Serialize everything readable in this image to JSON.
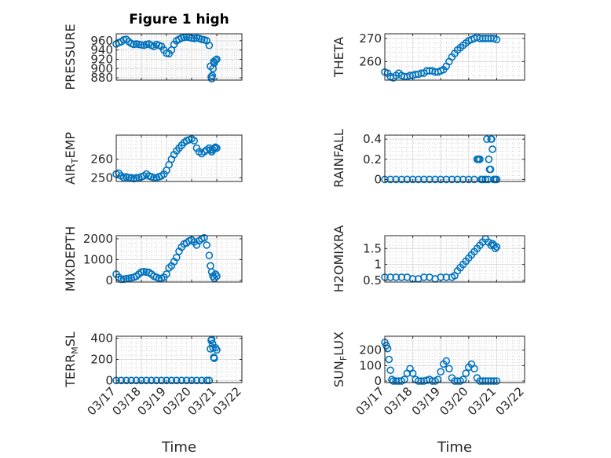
{
  "figure": {
    "title": "Figure 1 high",
    "marker_color": "#0072BD",
    "grid": "major+minor",
    "marker": "circle"
  },
  "chart_data": [
    {
      "type": "scatter",
      "ylabel": "PRESSURE",
      "title": "Figure 1 high",
      "xlim": [
        "03/17",
        "03/22"
      ],
      "ylim": [
        875,
        975
      ],
      "yticks": [
        880,
        900,
        920,
        940,
        960
      ],
      "xticks": [
        "03/17",
        "03/18",
        "03/19",
        "03/20",
        "03/21",
        "03/22"
      ],
      "show_xticks": false,
      "x": [
        0.0,
        0.1,
        0.2,
        0.3,
        0.4,
        0.5,
        0.6,
        0.7,
        0.8,
        0.9,
        1.0,
        1.1,
        1.2,
        1.3,
        1.4,
        1.5,
        1.6,
        1.7,
        1.8,
        1.9,
        2.0,
        2.1,
        2.2,
        2.3,
        2.4,
        2.5,
        2.6,
        2.7,
        2.8,
        2.9,
        3.0,
        3.1,
        3.2,
        3.3,
        3.4,
        3.5,
        3.6,
        3.7,
        3.75,
        3.78,
        3.8,
        3.82,
        3.85,
        3.88,
        3.9,
        3.95,
        4.0
      ],
      "y": [
        953,
        956,
        958,
        962,
        963,
        958,
        954,
        952,
        953,
        952,
        951,
        950,
        952,
        953,
        950,
        948,
        952,
        950,
        948,
        940,
        933,
        932,
        940,
        952,
        960,
        963,
        966,
        967,
        968,
        967,
        966,
        965,
        966,
        965,
        963,
        962,
        960,
        950,
        905,
        882,
        878,
        885,
        900,
        915,
        912,
        918,
        920
      ]
    },
    {
      "type": "scatter",
      "ylabel": "THETA",
      "xlim": [
        "03/17",
        "03/22"
      ],
      "ylim": [
        252,
        272
      ],
      "yticks": [
        260,
        270
      ],
      "xticks": [
        "03/17",
        "03/18",
        "03/19",
        "03/20",
        "03/21",
        "03/22"
      ],
      "show_xticks": false,
      "x": [
        0.0,
        0.1,
        0.2,
        0.3,
        0.4,
        0.5,
        0.6,
        0.7,
        0.8,
        0.9,
        1.0,
        1.1,
        1.2,
        1.3,
        1.4,
        1.5,
        1.6,
        1.7,
        1.8,
        1.9,
        2.0,
        2.1,
        2.2,
        2.3,
        2.4,
        2.5,
        2.6,
        2.7,
        2.8,
        2.9,
        3.0,
        3.1,
        3.2,
        3.3,
        3.4,
        3.5,
        3.6,
        3.7,
        3.8,
        3.9,
        4.0
      ],
      "y": [
        255.5,
        255,
        253.5,
        253,
        254,
        255,
        254,
        253.5,
        253.5,
        254,
        254,
        254.5,
        254.5,
        255,
        255,
        256,
        256,
        256,
        255.5,
        255.5,
        256,
        256.5,
        258,
        260,
        262,
        263.5,
        265,
        266,
        267,
        268,
        269,
        269.5,
        270,
        270.5,
        270,
        270,
        270,
        270,
        270,
        270,
        269.5
      ]
    },
    {
      "type": "scatter",
      "ylabel": "AIR_TEMP",
      "ylabel_main": "AIR",
      "ylabel_sub": "T",
      "ylabel_rest": "EMP",
      "xlim": [
        "03/17",
        "03/22"
      ],
      "ylim": [
        248,
        273
      ],
      "yticks": [
        250,
        260
      ],
      "xticks": [
        "03/17",
        "03/18",
        "03/19",
        "03/20",
        "03/21",
        "03/22"
      ],
      "show_xticks": false,
      "x": [
        0.0,
        0.1,
        0.2,
        0.3,
        0.4,
        0.5,
        0.6,
        0.7,
        0.8,
        0.9,
        1.0,
        1.1,
        1.2,
        1.3,
        1.4,
        1.5,
        1.6,
        1.7,
        1.8,
        1.9,
        2.0,
        2.1,
        2.2,
        2.3,
        2.4,
        2.5,
        2.6,
        2.7,
        2.8,
        2.9,
        3.0,
        3.1,
        3.2,
        3.3,
        3.4,
        3.5,
        3.6,
        3.7,
        3.75,
        3.8,
        3.85,
        3.9,
        3.95,
        4.0
      ],
      "y": [
        252,
        252.5,
        251,
        250,
        250.5,
        250,
        250,
        249.5,
        250,
        250,
        250.5,
        251,
        252,
        251,
        250.5,
        250,
        250,
        250.5,
        251,
        252,
        254,
        257,
        260,
        262.5,
        264.5,
        266,
        267.5,
        269,
        270,
        270.5,
        271,
        270,
        266,
        264,
        263,
        264,
        265,
        266,
        265,
        264,
        265,
        266,
        266.5,
        266
      ]
    },
    {
      "type": "scatter",
      "ylabel": "RAINFALL",
      "xlim": [
        "03/17",
        "03/22"
      ],
      "ylim": [
        -0.02,
        0.44
      ],
      "yticks": [
        0,
        0.2,
        0.4
      ],
      "xticks": [
        "03/17",
        "03/18",
        "03/19",
        "03/20",
        "03/21",
        "03/22"
      ],
      "show_xticks": false,
      "x": [
        0.0,
        0.2,
        0.4,
        0.6,
        0.8,
        1.0,
        1.2,
        1.4,
        1.6,
        1.8,
        2.0,
        2.2,
        2.4,
        2.6,
        2.8,
        3.0,
        3.2,
        3.3,
        3.35,
        3.4,
        3.45,
        3.5,
        3.6,
        3.65,
        3.7,
        3.72,
        3.75,
        3.78,
        3.8,
        3.82,
        3.85,
        3.9,
        3.95,
        4.0
      ],
      "y": [
        0,
        0,
        0,
        0,
        0,
        0,
        0,
        0,
        0,
        0,
        0,
        0,
        0,
        0,
        0,
        0,
        0,
        0.2,
        0.2,
        0.2,
        0,
        0,
        0,
        0.4,
        0,
        0.2,
        0.1,
        0.1,
        0.4,
        0.4,
        0.3,
        0,
        0,
        0
      ]
    },
    {
      "type": "scatter",
      "ylabel": "MIXDEPTH",
      "xlim": [
        "03/17",
        "03/22"
      ],
      "ylim": [
        -80,
        2150
      ],
      "yticks": [
        0,
        1000,
        2000
      ],
      "xticks": [
        "03/17",
        "03/18",
        "03/19",
        "03/20",
        "03/21",
        "03/22"
      ],
      "show_xticks": false,
      "x": [
        0.0,
        0.1,
        0.2,
        0.3,
        0.4,
        0.5,
        0.6,
        0.7,
        0.8,
        0.9,
        1.0,
        1.1,
        1.2,
        1.3,
        1.4,
        1.5,
        1.6,
        1.7,
        1.8,
        1.9,
        2.0,
        2.1,
        2.2,
        2.3,
        2.4,
        2.5,
        2.6,
        2.7,
        2.8,
        2.9,
        3.0,
        3.1,
        3.2,
        3.3,
        3.4,
        3.5,
        3.6,
        3.7,
        3.75,
        3.8,
        3.85,
        3.9,
        3.95,
        4.0
      ],
      "y": [
        300,
        150,
        50,
        60,
        80,
        100,
        120,
        150,
        200,
        300,
        400,
        420,
        400,
        380,
        300,
        200,
        150,
        100,
        100,
        150,
        300,
        600,
        700,
        900,
        1100,
        1400,
        1600,
        1750,
        1800,
        1900,
        1950,
        1850,
        1700,
        1900,
        2000,
        2050,
        1700,
        1200,
        700,
        400,
        200,
        100,
        300,
        200
      ]
    },
    {
      "type": "scatter",
      "ylabel": "H2OMIXRA",
      "xlim": [
        "03/17",
        "03/22"
      ],
      "ylim": [
        0.45,
        1.9
      ],
      "yticks": [
        0.5,
        1,
        1.5
      ],
      "xticks": [
        "03/17",
        "03/18",
        "03/19",
        "03/20",
        "03/21",
        "03/22"
      ],
      "show_xticks": false,
      "x": [
        0.0,
        0.2,
        0.4,
        0.6,
        0.8,
        1.0,
        1.2,
        1.4,
        1.6,
        1.8,
        2.0,
        2.2,
        2.4,
        2.5,
        2.6,
        2.7,
        2.8,
        2.9,
        3.0,
        3.1,
        3.2,
        3.3,
        3.4,
        3.5,
        3.6,
        3.7,
        3.8,
        3.85,
        3.9,
        3.95,
        4.0
      ],
      "y": [
        0.6,
        0.6,
        0.6,
        0.6,
        0.6,
        0.55,
        0.55,
        0.6,
        0.6,
        0.55,
        0.6,
        0.6,
        0.6,
        0.65,
        0.8,
        0.9,
        1.0,
        1.1,
        1.2,
        1.3,
        1.4,
        1.5,
        1.6,
        1.7,
        1.8,
        1.7,
        1.6,
        1.65,
        1.6,
        1.5,
        1.55
      ]
    },
    {
      "type": "scatter",
      "ylabel": "TERR_MSL",
      "ylabel_main": "TERR",
      "ylabel_sub": "M",
      "ylabel_rest": "SL",
      "xlim": [
        "03/17",
        "03/22"
      ],
      "ylim": [
        -20,
        420
      ],
      "yticks": [
        0,
        200,
        400
      ],
      "xticks": [
        "03/17",
        "03/18",
        "03/19",
        "03/20",
        "03/21",
        "03/22"
      ],
      "show_xticks": true,
      "x": [
        0.0,
        0.2,
        0.4,
        0.6,
        0.8,
        1.0,
        1.2,
        1.4,
        1.6,
        1.8,
        2.0,
        2.2,
        2.4,
        2.6,
        2.8,
        3.0,
        3.2,
        3.4,
        3.6,
        3.7,
        3.75,
        3.78,
        3.8,
        3.83,
        3.85,
        3.88,
        3.9,
        3.95,
        4.0
      ],
      "y": [
        0,
        0,
        0,
        0,
        0,
        0,
        0,
        0,
        0,
        0,
        0,
        0,
        0,
        0,
        0,
        0,
        0,
        0,
        0,
        0,
        300,
        380,
        390,
        350,
        310,
        220,
        210,
        310,
        290
      ]
    },
    {
      "type": "scatter",
      "ylabel": "SUN_FLUX",
      "ylabel_main": "SUN",
      "ylabel_sub": "F",
      "ylabel_rest": "LUX",
      "xlim": [
        "03/17",
        "03/22"
      ],
      "ylim": [
        -10,
        290
      ],
      "yticks": [
        0,
        100,
        200
      ],
      "xticks": [
        "03/17",
        "03/18",
        "03/19",
        "03/20",
        "03/21",
        "03/22"
      ],
      "show_xticks": true,
      "x": [
        0.0,
        0.05,
        0.1,
        0.15,
        0.2,
        0.25,
        0.3,
        0.4,
        0.5,
        0.6,
        0.7,
        0.8,
        0.9,
        1.0,
        1.1,
        1.2,
        1.3,
        1.4,
        1.5,
        1.6,
        1.7,
        1.8,
        1.9,
        2.0,
        2.1,
        2.2,
        2.3,
        2.4,
        2.5,
        2.6,
        2.7,
        2.8,
        2.9,
        3.0,
        3.1,
        3.2,
        3.3,
        3.4,
        3.5,
        3.6,
        3.7,
        3.8,
        3.9,
        4.0
      ],
      "y": [
        250,
        230,
        210,
        140,
        70,
        10,
        0,
        0,
        0,
        0,
        10,
        50,
        80,
        50,
        10,
        0,
        0,
        0,
        5,
        10,
        0,
        0,
        10,
        60,
        110,
        130,
        80,
        20,
        0,
        0,
        0,
        10,
        50,
        90,
        110,
        80,
        20,
        0,
        0,
        0,
        0,
        0,
        0,
        0
      ]
    }
  ],
  "xlabel_text": "Time"
}
